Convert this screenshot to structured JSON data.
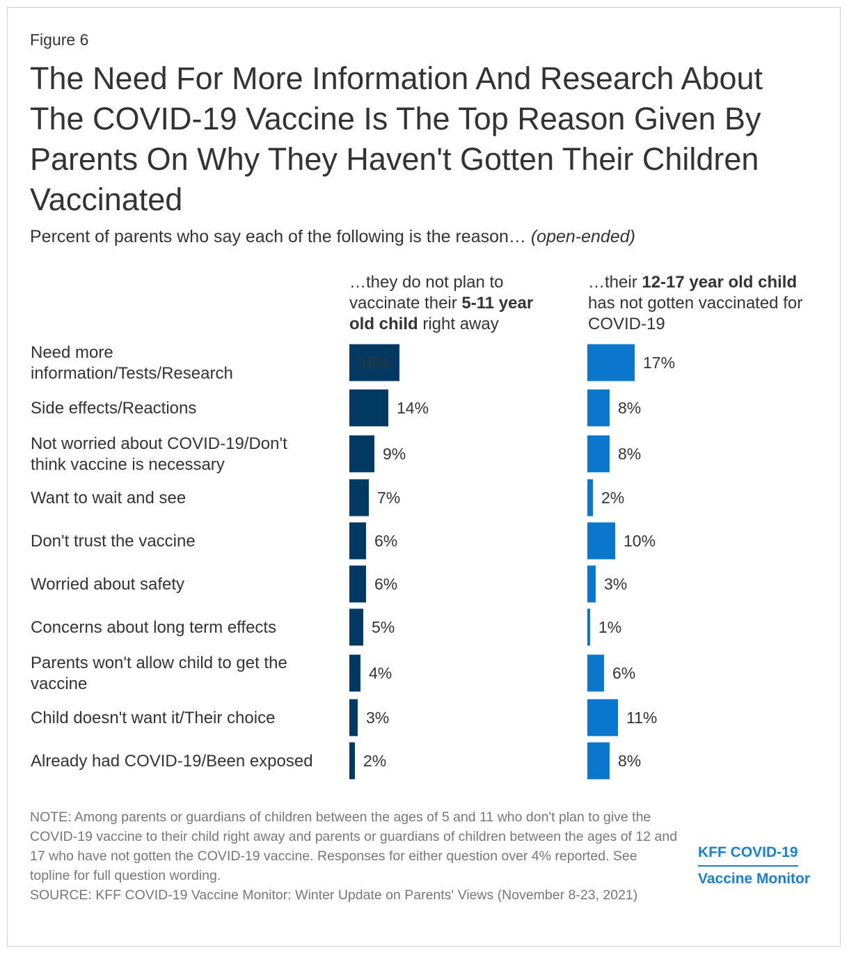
{
  "figure_label": "Figure 6",
  "title": "The Need For More Information And Research About The COVID-19 Vaccine Is The Top Reason Given By Parents On Why They Haven't Gotten Their Children Vaccinated",
  "subtitle": {
    "main": "Percent of parents who say each of the following is the reason… ",
    "italic": "(open-ended)"
  },
  "columns": [
    {
      "part1": "…they do not plan to vaccinate their ",
      "bold": "5-11 year old child",
      "part2": " right away"
    },
    {
      "part1": "…their ",
      "bold": "12-17 year old child",
      "part2": " has not gotten vaccinated for COVID-19"
    }
  ],
  "colors": {
    "series1": "#003a63",
    "series2": "#0b77cc"
  },
  "chart_data": {
    "type": "bar",
    "orientation": "horizontal",
    "categories": [
      [
        "Need more",
        "information/Tests/Research"
      ],
      [
        "Side effects/Reactions"
      ],
      [
        "Not worried about COVID-19/Don't",
        "think vaccine is necessary"
      ],
      [
        "Want to wait and see"
      ],
      [
        "Don't trust the vaccine"
      ],
      [
        "Worried about safety"
      ],
      [
        "Concerns about long term effects"
      ],
      [
        "Parents won't allow child to get the",
        "vaccine"
      ],
      [
        "Child doesn't want it/Their choice"
      ],
      [
        "Already had COVID-19/Been exposed"
      ]
    ],
    "series": [
      {
        "values": [
          18,
          14,
          9,
          7,
          6,
          6,
          5,
          4,
          3,
          2
        ],
        "labels": [
          "18%",
          "14%",
          "9%",
          "7%",
          "6%",
          "6%",
          "5%",
          "4%",
          "3%",
          "2%"
        ]
      },
      {
        "values": [
          17,
          8,
          8,
          2,
          10,
          3,
          1,
          6,
          11,
          8
        ],
        "labels": [
          "17%",
          "8%",
          "8%",
          "2%",
          "10%",
          "3%",
          "1%",
          "6%",
          "11%",
          "8%"
        ]
      }
    ]
  },
  "note": "NOTE: Among parents or guardians of children between the ages of 5 and 11 who don't plan to give the COVID-19 vaccine to their child right away and parents or guardians of children between the ages of 12 and 17 who have not gotten the COVID-19 vaccine. Responses for either question over 4% reported. See topline for full question wording.",
  "source": "SOURCE: KFF COVID-19 Vaccine Monitor: Winter Update on Parents' Views (November 8-23, 2021)",
  "logo": {
    "line1": "KFF COVID-19",
    "line2": "Vaccine Monitor"
  }
}
